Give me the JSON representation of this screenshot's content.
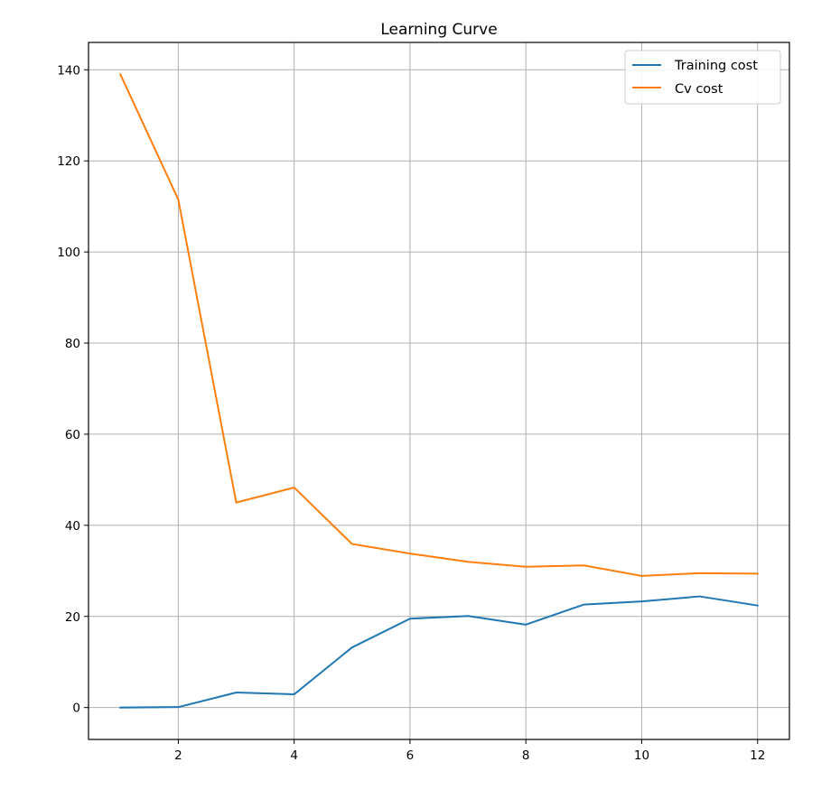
{
  "chart_data": {
    "type": "line",
    "title": "Learning Curve",
    "xlabel": "",
    "ylabel": "",
    "x": [
      1,
      2,
      3,
      4,
      5,
      6,
      7,
      8,
      9,
      10,
      11,
      12
    ],
    "xlim": [
      0.45,
      12.55
    ],
    "ylim": [
      -7,
      146
    ],
    "x_ticks": [
      2,
      4,
      6,
      8,
      10,
      12
    ],
    "y_ticks": [
      0,
      20,
      40,
      60,
      80,
      100,
      120,
      140
    ],
    "grid": true,
    "legend_position": "top-right",
    "series": [
      {
        "name": "Training cost",
        "color": "#1f77b4",
        "values": [
          0.0,
          0.1,
          3.3,
          2.9,
          13.2,
          19.5,
          20.1,
          18.2,
          22.6,
          23.3,
          24.4,
          22.4
        ]
      },
      {
        "name": "Cv cost",
        "color": "#ff7f0e",
        "values": [
          139.0,
          111.5,
          45.0,
          48.3,
          35.9,
          33.8,
          32.0,
          30.9,
          31.2,
          28.9,
          29.5,
          29.4
        ]
      }
    ]
  }
}
